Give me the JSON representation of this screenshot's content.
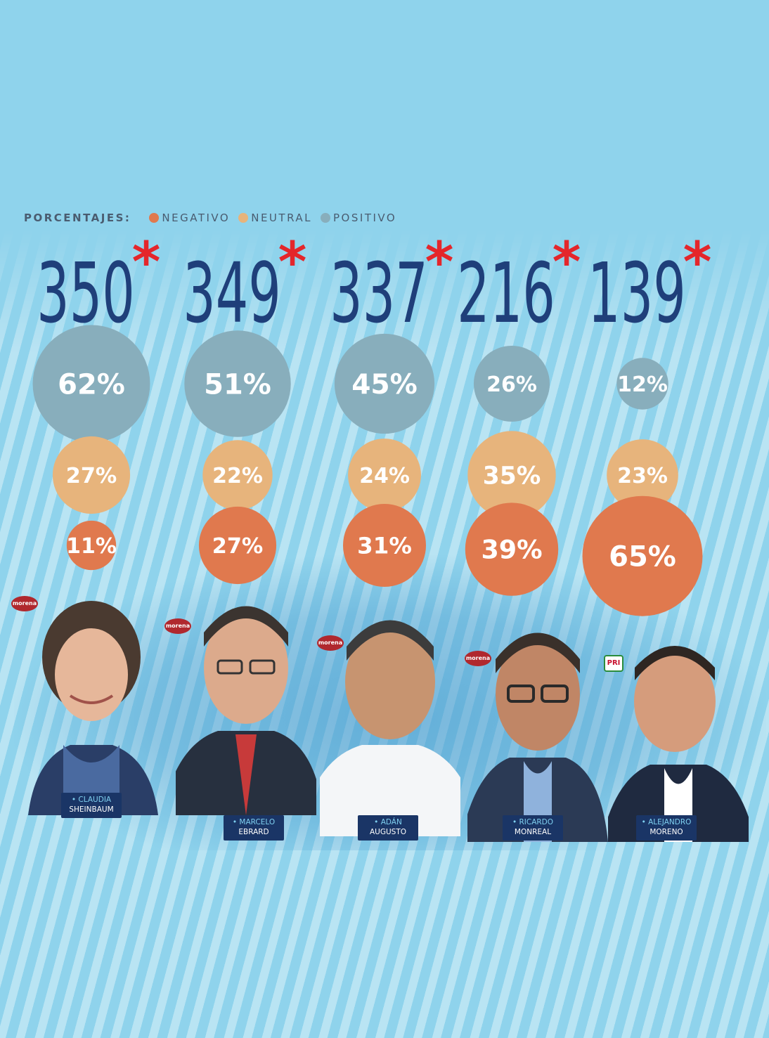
{
  "colors": {
    "negative": "#e0794e",
    "neutral": "#e7b47c",
    "positive": "#88aebc",
    "total": "#1f3f7a",
    "asterisk": "#e4262b"
  },
  "legend": {
    "title": "PORCENTAJES:",
    "items": [
      {
        "label": "NEGATIVO",
        "color": "#e0794e"
      },
      {
        "label": "NEUTRAL",
        "color": "#e7b47c"
      },
      {
        "label": "POSITIVO",
        "color": "#88aebc"
      }
    ]
  },
  "chart_data": {
    "type": "bubble",
    "title": "",
    "categories": [
      "CLAUDIA SHEINBAUM",
      "MARCELO EBRARD",
      "ADÁN AUGUSTO",
      "RICARDO MONREAL",
      "ALEJANDRO MORENO"
    ],
    "totals": [
      350,
      349,
      337,
      216,
      139
    ],
    "total_marker": "*",
    "series": [
      {
        "name": "POSITIVO",
        "values": [
          62,
          51,
          45,
          26,
          12
        ]
      },
      {
        "name": "NEUTRAL",
        "values": [
          27,
          22,
          24,
          35,
          23
        ]
      },
      {
        "name": "NEGATIVO",
        "values": [
          11,
          27,
          31,
          39,
          65
        ]
      }
    ]
  },
  "candidates": [
    {
      "first": "• CLAUDIA",
      "last": "SHEINBAUM",
      "party": "morena"
    },
    {
      "first": "• MARCELO",
      "last": "EBRARD",
      "party": "morena"
    },
    {
      "first": "• ADÁN",
      "last": "AUGUSTO",
      "party": "morena"
    },
    {
      "first": "• RICARDO",
      "last": "MONREAL",
      "party": "morena"
    },
    {
      "first": "• ALEJANDRO",
      "last": "MORENO",
      "party": "PRI"
    }
  ]
}
